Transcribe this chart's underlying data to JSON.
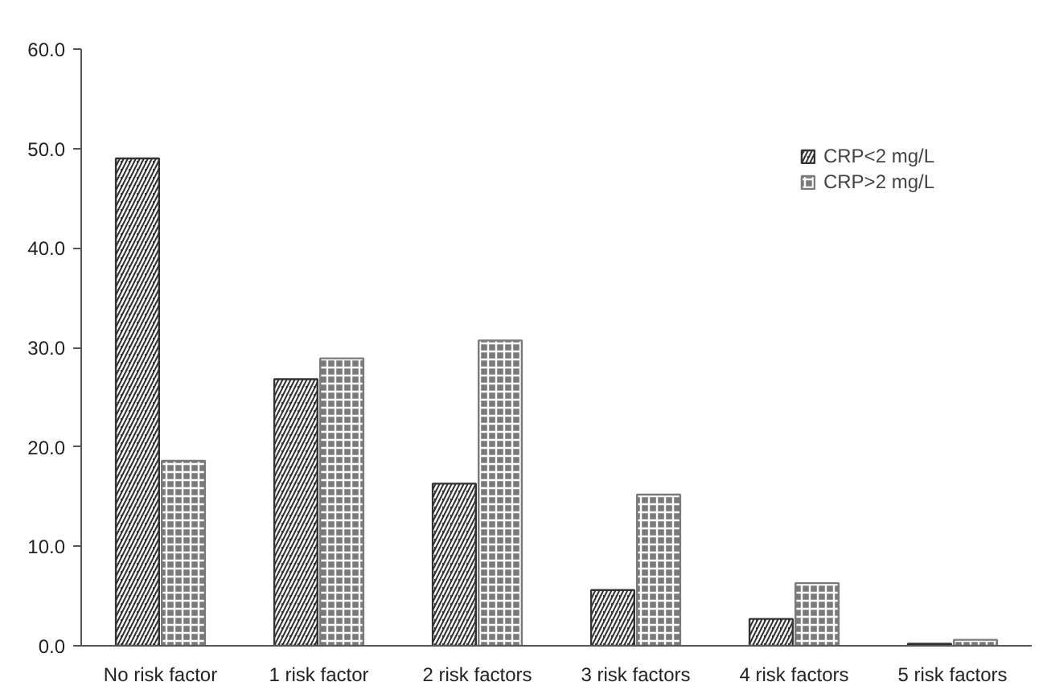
{
  "chart_data": {
    "type": "bar",
    "categories": [
      "No risk factor",
      "1 risk factor",
      "2 risk factors",
      "3 risk factors",
      "4 risk factors",
      "5 risk factors"
    ],
    "series": [
      {
        "name": "CRP<2 mg/L",
        "color": "#333333",
        "values": [
          49.0,
          26.8,
          16.3,
          5.6,
          2.7,
          0.2
        ]
      },
      {
        "name": "CRP>2 mg/L",
        "color": "#7a7a7a",
        "values": [
          18.6,
          28.9,
          30.7,
          15.2,
          6.3,
          0.6
        ]
      }
    ],
    "ylim": [
      0,
      60
    ],
    "yticks": [
      {
        "value": 0,
        "label": "0.0"
      },
      {
        "value": 10,
        "label": "10.0"
      },
      {
        "value": 20,
        "label": "20.0"
      },
      {
        "value": 30,
        "label": "30.0"
      },
      {
        "value": 40,
        "label": "40.0"
      },
      {
        "value": 50,
        "label": "50.0"
      },
      {
        "value": 60,
        "label": "60.0"
      }
    ],
    "grid": false,
    "legend": "top right"
  }
}
